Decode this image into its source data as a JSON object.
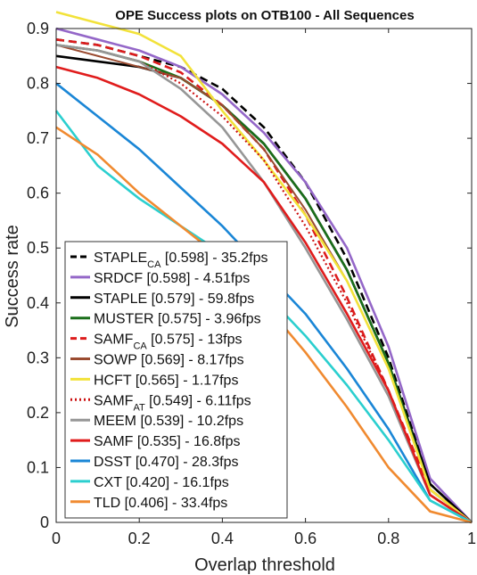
{
  "chart_data": {
    "type": "line",
    "title": "OPE Success plots on OTB100 - All Sequences",
    "xlabel": "Overlap threshold",
    "ylabel": "Success rate",
    "xlim": [
      0,
      1
    ],
    "ylim": [
      0,
      0.9
    ],
    "x_ticks": [
      "0",
      "0.2",
      "0.4",
      "0.6",
      "0.8",
      "1"
    ],
    "y_ticks": [
      "0",
      "0.1",
      "0.2",
      "0.3",
      "0.4",
      "0.5",
      "0.6",
      "0.7",
      "0.8",
      "0.9"
    ],
    "grid": false,
    "legend_position": "lower-left",
    "x": [
      0,
      0.1,
      0.2,
      0.3,
      0.4,
      0.5,
      0.6,
      0.7,
      0.8,
      0.9,
      1.0
    ],
    "series": [
      {
        "label": "STAPLE",
        "sub": "CA",
        "rest": " [0.598] - 35.2fps",
        "color": "#000000",
        "dash": "dash",
        "width": 2.6,
        "values": [
          0.88,
          0.87,
          0.85,
          0.83,
          0.79,
          0.72,
          0.62,
          0.48,
          0.3,
          0.07,
          0.0
        ]
      },
      {
        "label": "SRDCF [0.598] - 4.51fps",
        "color": "#9467c8",
        "dash": "solid",
        "width": 2.6,
        "values": [
          0.9,
          0.88,
          0.86,
          0.83,
          0.78,
          0.71,
          0.62,
          0.5,
          0.32,
          0.08,
          0.0
        ]
      },
      {
        "label": "STAPLE [0.579] - 59.8fps",
        "color": "#000000",
        "dash": "solid",
        "width": 2.6,
        "values": [
          0.85,
          0.84,
          0.83,
          0.81,
          0.76,
          0.69,
          0.59,
          0.46,
          0.29,
          0.07,
          0.0
        ]
      },
      {
        "label": "MUSTER [0.575] - 3.96fps",
        "color": "#1a6e1a",
        "dash": "solid",
        "width": 2.6,
        "values": [
          0.87,
          0.86,
          0.84,
          0.81,
          0.76,
          0.69,
          0.59,
          0.46,
          0.29,
          0.06,
          0.0
        ]
      },
      {
        "label": "SAMF",
        "sub": "CA",
        "rest": " [0.575] - 13fps",
        "color": "#dd1c1c",
        "dash": "dash",
        "width": 2.6,
        "values": [
          0.88,
          0.87,
          0.85,
          0.82,
          0.76,
          0.68,
          0.56,
          0.41,
          0.24,
          0.06,
          0.0
        ]
      },
      {
        "label": "SOWP [0.569] - 8.17fps",
        "color": "#9a4b30",
        "dash": "solid",
        "width": 2.0,
        "values": [
          0.87,
          0.85,
          0.83,
          0.81,
          0.76,
          0.68,
          0.57,
          0.44,
          0.28,
          0.06,
          0.0
        ]
      },
      {
        "label": "HCFT [0.565] - 1.17fps",
        "color": "#f2e23a",
        "dash": "solid",
        "width": 2.6,
        "values": [
          0.93,
          0.91,
          0.89,
          0.85,
          0.75,
          0.66,
          0.56,
          0.44,
          0.28,
          0.06,
          0.0
        ]
      },
      {
        "label": "SAMF",
        "sub": "AT",
        "rest": " [0.549] - 6.11fps",
        "color": "#cc1111",
        "dash": "dot",
        "width": 2.2,
        "values": [
          0.87,
          0.86,
          0.84,
          0.8,
          0.74,
          0.66,
          0.54,
          0.4,
          0.24,
          0.05,
          0.0
        ]
      },
      {
        "label": "MEEM [0.539] - 10.2fps",
        "color": "#969696",
        "dash": "solid",
        "width": 2.6,
        "values": [
          0.87,
          0.86,
          0.84,
          0.79,
          0.72,
          0.62,
          0.5,
          0.37,
          0.23,
          0.05,
          0.0
        ]
      },
      {
        "label": "SAMF [0.535] - 16.8fps",
        "color": "#e01c1c",
        "dash": "solid",
        "width": 2.6,
        "values": [
          0.83,
          0.81,
          0.78,
          0.74,
          0.69,
          0.62,
          0.51,
          0.38,
          0.24,
          0.05,
          0.0
        ]
      },
      {
        "label": "DSST [0.470] - 28.3fps",
        "color": "#1a86d6",
        "dash": "solid",
        "width": 2.6,
        "values": [
          0.8,
          0.74,
          0.68,
          0.61,
          0.54,
          0.46,
          0.38,
          0.28,
          0.17,
          0.04,
          0.0
        ]
      },
      {
        "label": "CXT [0.420] - 16.1fps",
        "color": "#2bcfcf",
        "dash": "solid",
        "width": 2.6,
        "values": [
          0.75,
          0.65,
          0.59,
          0.54,
          0.49,
          0.42,
          0.34,
          0.25,
          0.15,
          0.04,
          0.0
        ]
      },
      {
        "label": "TLD [0.406] - 33.4fps",
        "color": "#f08a30",
        "dash": "solid",
        "width": 2.6,
        "values": [
          0.72,
          0.67,
          0.6,
          0.54,
          0.48,
          0.4,
          0.31,
          0.21,
          0.1,
          0.02,
          0.0
        ]
      }
    ]
  }
}
